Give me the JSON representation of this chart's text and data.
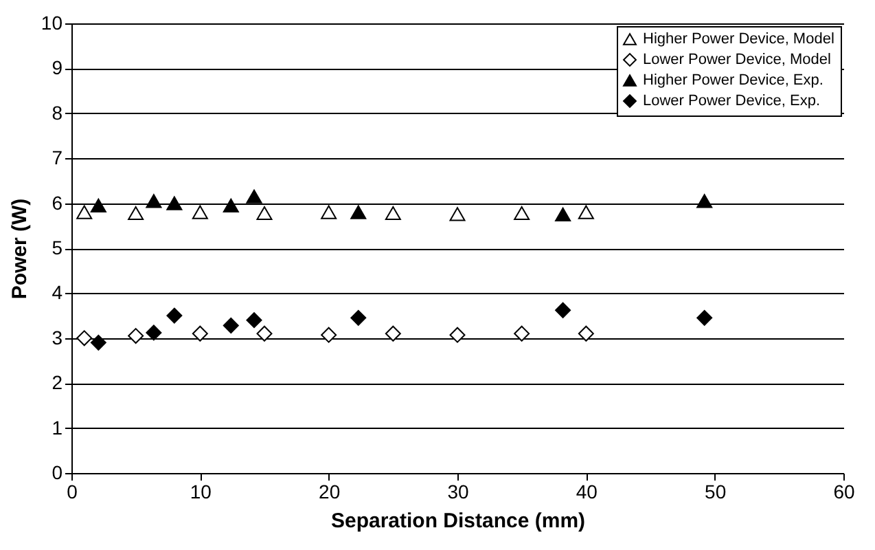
{
  "chart_data": {
    "type": "scatter",
    "xlabel": "Separation Distance (mm)",
    "ylabel": "Power (W)",
    "xlim": [
      0,
      60
    ],
    "xticks": [
      0,
      10,
      20,
      30,
      40,
      50,
      60
    ],
    "ylim": [
      0,
      10
    ],
    "yticks": [
      0,
      1,
      2,
      3,
      4,
      5,
      6,
      7,
      8,
      9,
      10
    ],
    "grid": "y",
    "legend": "top right",
    "series": [
      {
        "name": "Higher Power Device, Model",
        "color": "#ffffff",
        "marker": "triangle",
        "x": [
          1,
          5,
          10,
          15,
          20,
          25,
          30,
          35,
          40
        ],
        "values": [
          5.8,
          5.78,
          5.8,
          5.78,
          5.8,
          5.78,
          5.76,
          5.78,
          5.8
        ]
      },
      {
        "name": "Lower Power Device, Model",
        "color": "#ffffff",
        "marker": "diamond",
        "x": [
          1,
          5,
          10,
          15,
          20,
          25,
          30,
          35,
          40
        ],
        "values": [
          3.0,
          3.05,
          3.1,
          3.1,
          3.07,
          3.1,
          3.07,
          3.1,
          3.1
        ]
      },
      {
        "name": "Higher Power Device, Exp.",
        "color": "#000000",
        "marker": "triangle",
        "x": [
          2.1,
          6.4,
          8,
          12.4,
          14.2,
          22.3,
          38.2,
          49.2
        ],
        "values": [
          5.95,
          6.05,
          6.0,
          5.95,
          6.15,
          5.8,
          5.75,
          6.05
        ]
      },
      {
        "name": "Lower Power Device, Exp.",
        "color": "#000000",
        "marker": "diamond",
        "x": [
          2.1,
          6.4,
          8,
          12.4,
          14.2,
          22.3,
          38.2,
          49.2
        ],
        "values": [
          2.9,
          3.12,
          3.5,
          3.28,
          3.4,
          3.45,
          3.62,
          3.45
        ]
      }
    ]
  }
}
